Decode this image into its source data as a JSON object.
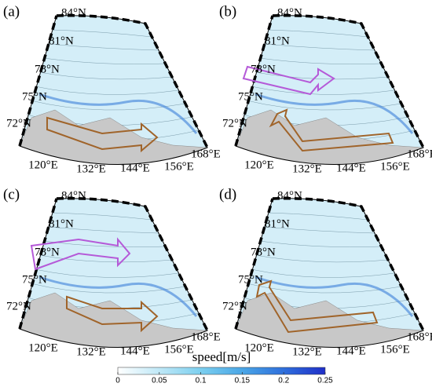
{
  "panels": [
    {
      "label": "(a)"
    },
    {
      "label": "(b)"
    },
    {
      "label": "(c)"
    },
    {
      "label": "(d)"
    }
  ],
  "lat_labels": [
    "84°N",
    "81°N",
    "78°N",
    "75°N",
    "72°N"
  ],
  "lon_labels": [
    "120°E",
    "132°E",
    "144°E",
    "156°E",
    "168°E"
  ],
  "colorbar": {
    "label": "speed[m/s]",
    "range": [
      0,
      0.25
    ],
    "ticks": [
      0,
      0.05,
      0.1,
      0.15,
      0.2,
      0.25
    ],
    "colors": [
      "#ffffff",
      "#bfe8f7",
      "#7ccfef",
      "#4aa6e6",
      "#2f6fdc",
      "#1f2fc8"
    ]
  }
}
